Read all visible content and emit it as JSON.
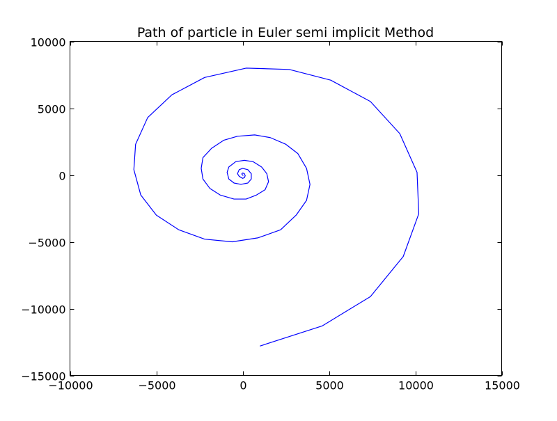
{
  "chart_data": {
    "type": "line",
    "title": "Path of particle in Euler semi implicit Method",
    "xlabel": "",
    "ylabel": "",
    "xlim": [
      -10000,
      15000
    ],
    "ylim": [
      -15000,
      10000
    ],
    "xticks": [
      -10000,
      -5000,
      0,
      5000,
      10000,
      15000
    ],
    "yticks": [
      -15000,
      -10000,
      -5000,
      0,
      5000,
      10000
    ],
    "xtick_labels": [
      "−10000",
      "−5000",
      "0",
      "5000",
      "10000",
      "15000"
    ],
    "ytick_labels": [
      "−15000",
      "−10000",
      "−5000",
      "0",
      "5000",
      "10000"
    ],
    "grid": false,
    "line_color": "#0000ff",
    "series": [
      {
        "x": [
          1000,
          4600,
          7400,
          9300,
          10200,
          10100,
          9100,
          7400,
          5100,
          2700,
          200,
          -2200,
          -4100,
          -5500,
          -6200,
          -6300,
          -5900,
          -5000,
          -3700,
          -2200,
          -600,
          900,
          2200,
          3100,
          3700,
          3900,
          3700,
          3200,
          2500,
          1600,
          700,
          -300,
          -1100,
          -1800,
          -2300,
          -2400,
          -2300,
          -1900,
          -1300,
          -500,
          200,
          800,
          1300,
          1500,
          1400,
          1100,
          600,
          100,
          -400,
          -800,
          -900,
          -800,
          -500,
          -100,
          300,
          500,
          500,
          300,
          0,
          -200,
          -300,
          -200,
          0,
          100,
          150,
          100,
          0,
          -50,
          0,
          20,
          0
        ],
        "y": [
          -12800,
          -11300,
          -9100,
          -6100,
          -2900,
          200,
          3100,
          5500,
          7100,
          7900,
          8000,
          7300,
          6000,
          4300,
          2300,
          400,
          -1500,
          -3000,
          -4100,
          -4800,
          -5000,
          -4700,
          -4100,
          -3000,
          -1900,
          -700,
          500,
          1600,
          2300,
          2800,
          3000,
          2900,
          2600,
          2000,
          1300,
          500,
          -300,
          -1000,
          -1500,
          -1800,
          -1800,
          -1500,
          -1100,
          -500,
          100,
          600,
          1000,
          1100,
          1000,
          600,
          200,
          -300,
          -600,
          -700,
          -600,
          -300,
          100,
          400,
          500,
          400,
          100,
          -100,
          -250,
          -200,
          -50,
          100,
          150,
          80,
          0,
          -30,
          0
        ]
      }
    ]
  }
}
